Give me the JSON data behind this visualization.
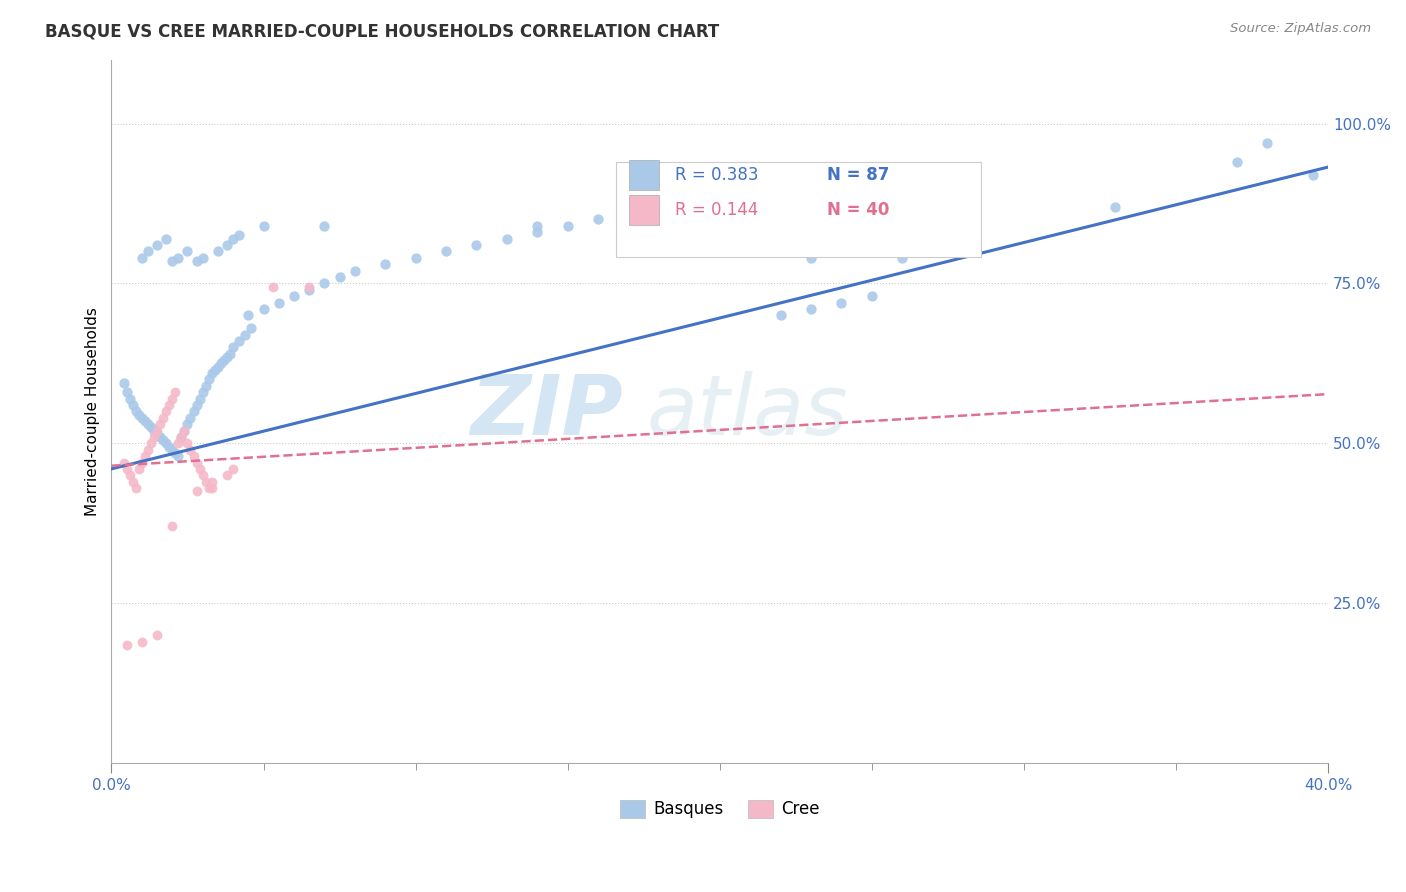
{
  "title": "BASQUE VS CREE MARRIED-COUPLE HOUSEHOLDS CORRELATION CHART",
  "source": "Source: ZipAtlas.com",
  "ylabel": "Married-couple Households",
  "ytick_labels": [
    "25.0%",
    "50.0%",
    "75.0%",
    "100.0%"
  ],
  "ytick_values": [
    0.25,
    0.5,
    0.75,
    1.0
  ],
  "xlim": [
    0.0,
    0.4
  ],
  "ylim": [
    0.0,
    1.1
  ],
  "blue_R": 0.383,
  "blue_N": 87,
  "pink_R": 0.144,
  "pink_N": 40,
  "blue_color": "#aac9e8",
  "pink_color": "#f5b8c8",
  "blue_line_color": "#4472c4",
  "pink_line_color": "#e07090",
  "watermark_zip": "ZIP",
  "watermark_atlas": "atlas",
  "legend_label_blue": "Basques",
  "legend_label_pink": "Cree",
  "blue_line_intercept": 0.46,
  "blue_line_slope": 1.18,
  "pink_line_intercept": 0.465,
  "pink_line_slope": 0.28
}
